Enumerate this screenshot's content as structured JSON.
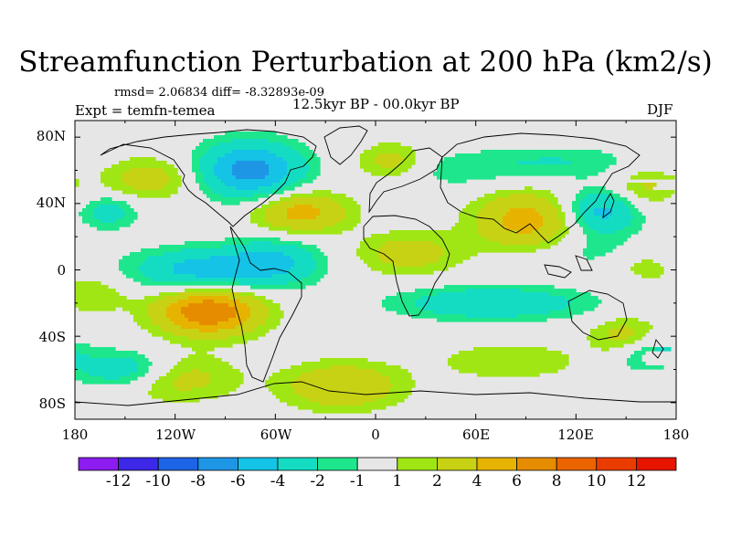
{
  "title": "Streamfunction Perturbation at 200 hPa (km2/s)",
  "stats": "rmsd= 2.06834 diff= -8.32893e-09",
  "experiment": "Expt = temfn-temea",
  "period": "12.5kyr BP - 00.0kyr BP",
  "season": "DJF",
  "lat_labels": [
    "80N",
    "40N",
    "0",
    "40S",
    "80S"
  ],
  "lon_labels": [
    "180",
    "120W",
    "60W",
    "0",
    "60E",
    "120E",
    "180"
  ],
  "colorbar": {
    "labels": [
      "-12",
      "-10",
      "-8",
      "-6",
      "-4",
      "-2",
      "-1",
      "1",
      "2",
      "4",
      "6",
      "8",
      "10",
      "12"
    ],
    "colors": [
      "#8c1cf0",
      "#3c28e6",
      "#1e64e6",
      "#1e96e6",
      "#14c3e6",
      "#14dcc3",
      "#1ee68c",
      "#e6e6e6",
      "#a0e614",
      "#c8d214",
      "#e6b400",
      "#e68c00",
      "#eb6400",
      "#eb3c00",
      "#e61400"
    ]
  },
  "chart_data": {
    "type": "heatmap",
    "title": "Streamfunction Perturbation at 200 hPa (km2/s)",
    "variable": "Streamfunction perturbation",
    "units": "km2/s",
    "level": "200 hPa",
    "xlabel": "",
    "ylabel": "",
    "xlim": [
      -180,
      180
    ],
    "ylim": [
      -90,
      90
    ],
    "levels": [
      -12,
      -10,
      -8,
      -6,
      -4,
      -2,
      -1,
      1,
      2,
      4,
      6,
      8,
      10,
      12
    ],
    "features": [
      {
        "lon": -75,
        "lat": 60,
        "value": -7,
        "sx": 22,
        "sy": 12
      },
      {
        "lon": -105,
        "lat": 0,
        "value": -5,
        "sx": 28,
        "sy": 9
      },
      {
        "lon": -60,
        "lat": 5,
        "value": -4,
        "sx": 20,
        "sy": 10
      },
      {
        "lon": -160,
        "lat": 35,
        "value": -3,
        "sx": 12,
        "sy": 7
      },
      {
        "lon": -150,
        "lat": -60,
        "value": -4,
        "sx": 20,
        "sy": 8
      },
      {
        "lon": 70,
        "lat": -20,
        "value": -4,
        "sx": 40,
        "sy": 7
      },
      {
        "lon": 135,
        "lat": 35,
        "value": -5,
        "sx": 16,
        "sy": 10
      },
      {
        "lon": 110,
        "lat": 65,
        "value": -2,
        "sx": 35,
        "sy": 7
      },
      {
        "lon": 45,
        "lat": 60,
        "value": -1.5,
        "sx": 30,
        "sy": 8
      },
      {
        "lon": 165,
        "lat": -50,
        "value": -3,
        "sx": 15,
        "sy": 8
      },
      {
        "lon": 140,
        "lat": 10,
        "value": -1.5,
        "sx": 30,
        "sy": 7
      },
      {
        "lon": -100,
        "lat": -25,
        "value": 8,
        "sx": 22,
        "sy": 10
      },
      {
        "lon": -45,
        "lat": 35,
        "value": 5,
        "sx": 20,
        "sy": 9
      },
      {
        "lon": 90,
        "lat": 30,
        "value": 5,
        "sx": 22,
        "sy": 12
      },
      {
        "lon": -120,
        "lat": -65,
        "value": 3,
        "sx": 25,
        "sy": 10
      },
      {
        "lon": -20,
        "lat": -70,
        "value": 4,
        "sx": 25,
        "sy": 10
      },
      {
        "lon": 10,
        "lat": 65,
        "value": 3,
        "sx": 15,
        "sy": 8
      },
      {
        "lon": -135,
        "lat": 55,
        "value": 3,
        "sx": 20,
        "sy": 9
      },
      {
        "lon": 160,
        "lat": 50,
        "value": 2.5,
        "sx": 15,
        "sy": 9
      },
      {
        "lon": 150,
        "lat": -40,
        "value": 3,
        "sx": 15,
        "sy": 8
      },
      {
        "lon": 20,
        "lat": 10,
        "value": 3,
        "sx": 22,
        "sy": 9
      },
      {
        "lon": -170,
        "lat": -15,
        "value": 2,
        "sx": 15,
        "sy": 8
      },
      {
        "lon": 80,
        "lat": -55,
        "value": 2,
        "sx": 30,
        "sy": 8
      },
      {
        "lon": 160,
        "lat": 5,
        "value": 2,
        "sx": 15,
        "sy": 8
      }
    ]
  }
}
